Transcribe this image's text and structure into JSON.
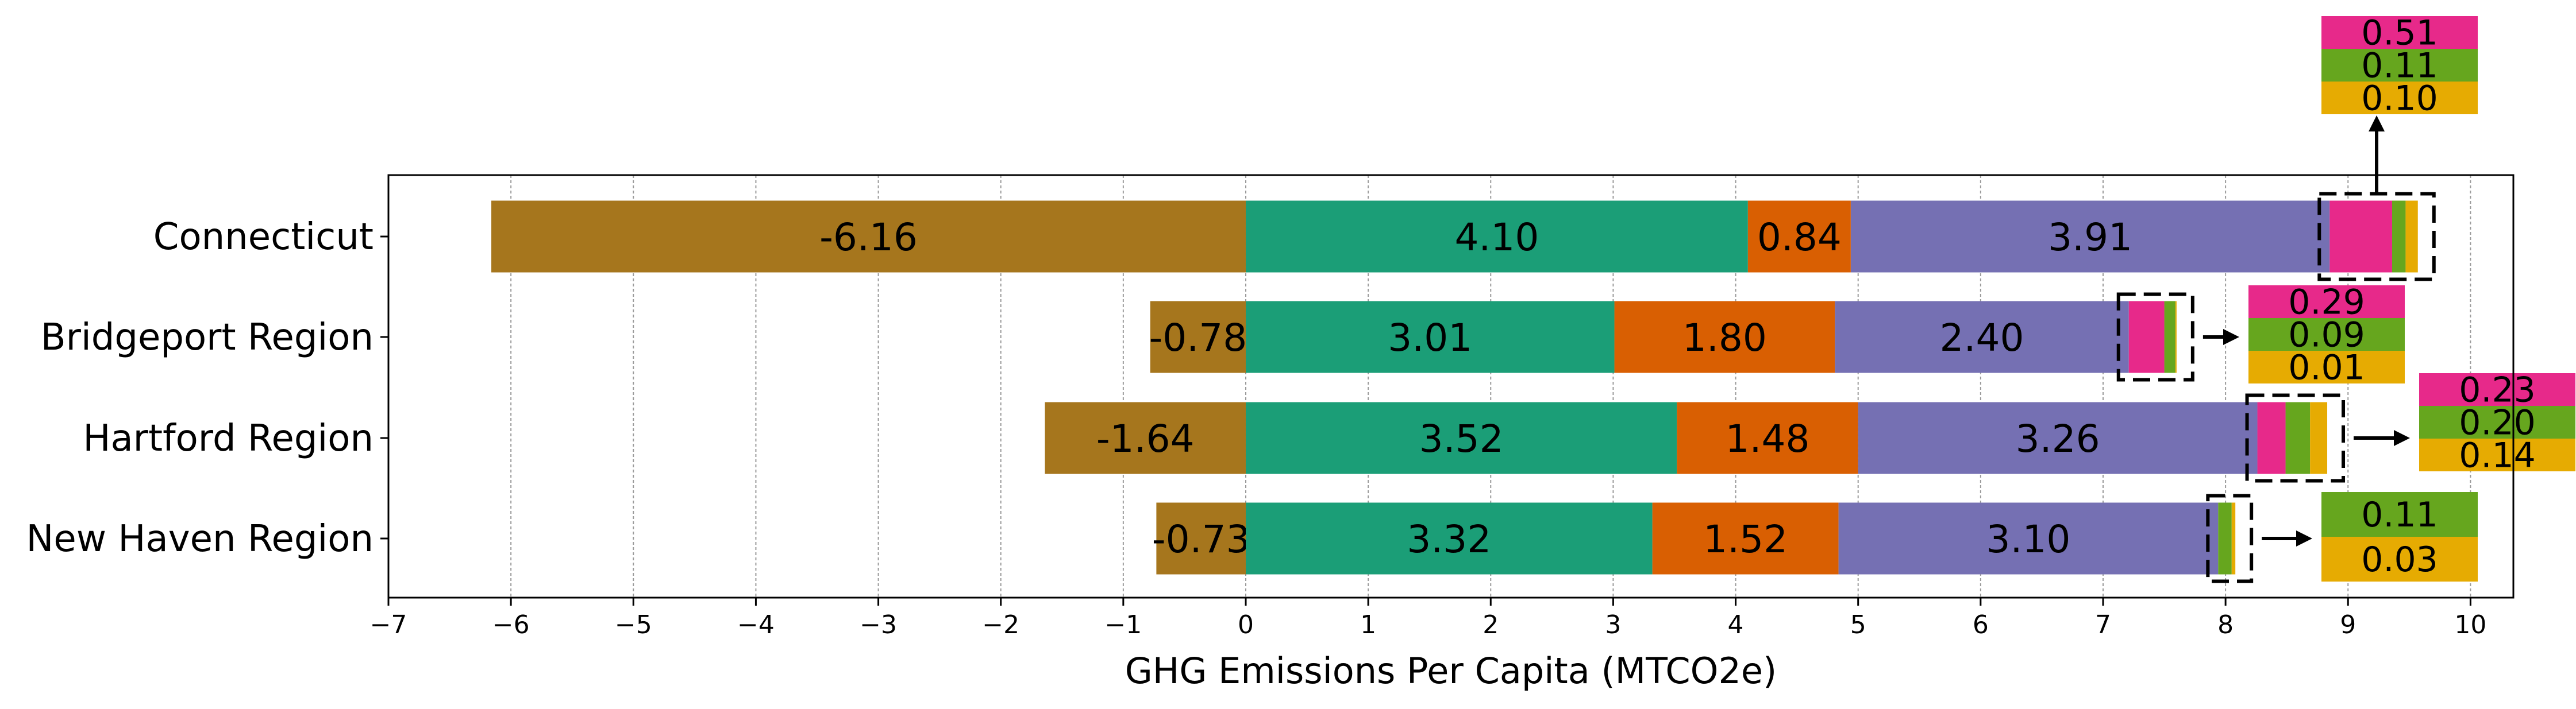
{
  "colors": {
    "sequestration": "#a6761d",
    "seg1": "#1b9e77",
    "seg2": "#d95f02",
    "seg3": "#7570b3",
    "seg4": "#e7298a",
    "seg5": "#66a61e",
    "seg6": "#e6ab02"
  },
  "chart_data": {
    "type": "bar",
    "orientation": "horizontal",
    "stacked": true,
    "xlabel": "GHG Emissions Per Capita (MTCO2e)",
    "xlim": [
      -7,
      10.35
    ],
    "xticks": [
      -7,
      -6,
      -5,
      -4,
      -3,
      -2,
      -1,
      0,
      1,
      2,
      3,
      4,
      5,
      6,
      7,
      8,
      9,
      10
    ],
    "xtick_labels": [
      "−7",
      "−6",
      "−5",
      "−4",
      "−3",
      "−2",
      "−1",
      "0",
      "1",
      "2",
      "3",
      "4",
      "5",
      "6",
      "7",
      "8",
      "9",
      "10"
    ],
    "grid": "vertical dashed",
    "categories": [
      "Connecticut",
      "Bridgeport Region",
      "Hartford Region",
      "New Haven Region"
    ],
    "negative_values": [
      -6.16,
      -0.78,
      -1.64,
      -0.73
    ],
    "negative_labels": [
      "-6.16",
      "-0.78",
      "-1.64",
      "-0.73"
    ],
    "positive_segments": [
      {
        "values": [
          4.1,
          0.84,
          3.91,
          0.51,
          0.11,
          0.1
        ],
        "labels": [
          "4.10",
          "0.84",
          "3.91",
          "0.51",
          "0.11",
          "0.10"
        ]
      },
      {
        "values": [
          3.01,
          1.8,
          2.4,
          0.29,
          0.09,
          0.01
        ],
        "labels": [
          "3.01",
          "1.80",
          "2.40",
          "0.29",
          "0.09",
          "0.01"
        ]
      },
      {
        "values": [
          3.52,
          1.48,
          3.26,
          0.23,
          0.2,
          0.14
        ],
        "labels": [
          "3.52",
          "1.48",
          "3.26",
          "0.23",
          "0.20",
          "0.14"
        ]
      },
      {
        "values": [
          3.32,
          1.52,
          3.1,
          0.0,
          0.11,
          0.03
        ],
        "labels": [
          "3.32",
          "1.52",
          "3.10",
          "",
          "0.11",
          "0.03"
        ]
      }
    ]
  }
}
